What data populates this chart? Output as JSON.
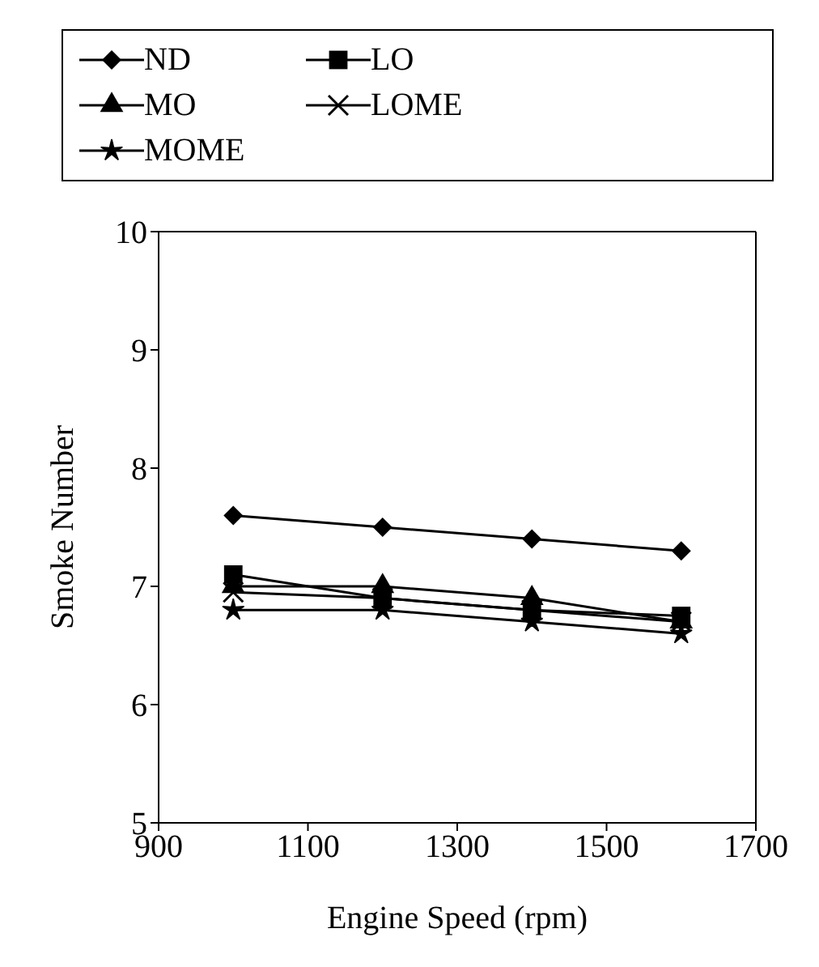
{
  "chart_data": {
    "type": "line",
    "xlabel": "Engine Speed (rpm)",
    "ylabel": "Smoke Number",
    "x": [
      1000,
      1200,
      1400,
      1600
    ],
    "series": [
      {
        "name": "ND",
        "color": "#000000",
        "marker": "diamond",
        "values": [
          7.6,
          7.5,
          7.4,
          7.3
        ]
      },
      {
        "name": "LO",
        "color": "#000000",
        "marker": "square",
        "values": [
          7.1,
          6.9,
          6.8,
          6.75
        ]
      },
      {
        "name": "MO",
        "color": "#000000",
        "marker": "triangle",
        "values": [
          7.0,
          7.0,
          6.9,
          6.7
        ]
      },
      {
        "name": "LOME",
        "color": "#000000",
        "marker": "cross",
        "values": [
          6.95,
          6.9,
          6.8,
          6.7
        ]
      },
      {
        "name": "MOME",
        "color": "#000000",
        "marker": "star",
        "values": [
          6.8,
          6.8,
          6.7,
          6.6
        ]
      }
    ],
    "xlim": [
      900,
      1700
    ],
    "xticks": [
      900,
      1100,
      1300,
      1500,
      1700
    ],
    "ylim": [
      5,
      10
    ],
    "yticks": [
      5,
      6,
      7,
      8,
      9,
      10
    ],
    "grid": false,
    "legend": "top",
    "line_style": "solid"
  }
}
